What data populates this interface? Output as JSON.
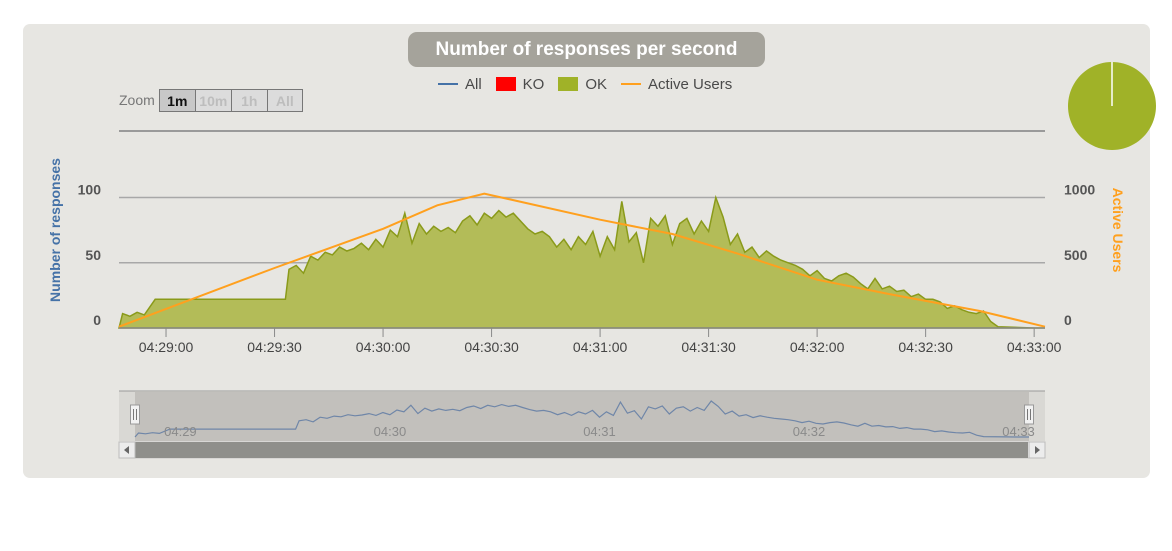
{
  "title": "Number of responses per second",
  "legend": {
    "items": [
      {
        "key": "all",
        "label": "All",
        "color": "#4572a7",
        "kind": "line"
      },
      {
        "key": "ko",
        "label": "KO",
        "color": "#ff0000",
        "kind": "box"
      },
      {
        "key": "ok",
        "label": "OK",
        "color": "#a0b228",
        "kind": "box"
      },
      {
        "key": "users",
        "label": "Active Users",
        "color": "#ffa01e",
        "kind": "line"
      }
    ]
  },
  "zoom": {
    "label": "Zoom",
    "buttons": [
      {
        "label": "1m",
        "active": true
      },
      {
        "label": "10m",
        "active": false
      },
      {
        "label": "1h",
        "active": false
      },
      {
        "label": "All",
        "active": false
      }
    ]
  },
  "chart_data": {
    "type": "area",
    "title": "Number of responses per second",
    "xlabel": "",
    "ylabel": "Number of responses",
    "y2label": "Active Users",
    "x_range": [
      "04:28:47",
      "04:33:03"
    ],
    "x_ticks": [
      "04:29:00",
      "04:29:30",
      "04:30:00",
      "04:30:30",
      "04:31:00",
      "04:31:30",
      "04:32:00",
      "04:32:30",
      "04:33:00"
    ],
    "ylim": [
      0,
      150
    ],
    "y_ticks": [
      0,
      50,
      100
    ],
    "y2lim": [
      0,
      1500
    ],
    "y2_ticks": [
      0,
      500,
      1000
    ],
    "grid": true,
    "legend_position": "top-center",
    "series": [
      {
        "name": "OK",
        "axis": "left",
        "color": "#a0b228",
        "points": [
          [
            "04:28:47",
            0
          ],
          [
            "04:28:48",
            11
          ],
          [
            "04:28:50",
            9
          ],
          [
            "04:28:52",
            12
          ],
          [
            "04:28:54",
            10
          ],
          [
            "04:28:57",
            22
          ],
          [
            "04:29:00",
            22
          ],
          [
            "04:29:10",
            22
          ],
          [
            "04:29:20",
            22
          ],
          [
            "04:29:30",
            22
          ],
          [
            "04:29:33",
            22
          ],
          [
            "04:29:34",
            45
          ],
          [
            "04:29:36",
            48
          ],
          [
            "04:29:38",
            42
          ],
          [
            "04:29:40",
            55
          ],
          [
            "04:29:42",
            52
          ],
          [
            "04:29:44",
            58
          ],
          [
            "04:29:46",
            56
          ],
          [
            "04:29:48",
            62
          ],
          [
            "04:29:50",
            59
          ],
          [
            "04:29:52",
            61
          ],
          [
            "04:29:54",
            65
          ],
          [
            "04:29:56",
            60
          ],
          [
            "04:29:58",
            68
          ],
          [
            "04:30:00",
            62
          ],
          [
            "04:30:02",
            75
          ],
          [
            "04:30:04",
            70
          ],
          [
            "04:30:06",
            88
          ],
          [
            "04:30:08",
            65
          ],
          [
            "04:30:10",
            80
          ],
          [
            "04:30:12",
            72
          ],
          [
            "04:30:14",
            78
          ],
          [
            "04:30:16",
            74
          ],
          [
            "04:30:18",
            77
          ],
          [
            "04:30:20",
            73
          ],
          [
            "04:30:22",
            82
          ],
          [
            "04:30:24",
            86
          ],
          [
            "04:30:26",
            79
          ],
          [
            "04:30:28",
            88
          ],
          [
            "04:30:30",
            84
          ],
          [
            "04:30:32",
            90
          ],
          [
            "04:30:34",
            85
          ],
          [
            "04:30:36",
            88
          ],
          [
            "04:30:38",
            82
          ],
          [
            "04:30:40",
            76
          ],
          [
            "04:30:42",
            72
          ],
          [
            "04:30:44",
            74
          ],
          [
            "04:30:46",
            70
          ],
          [
            "04:30:48",
            62
          ],
          [
            "04:30:50",
            68
          ],
          [
            "04:30:52",
            60
          ],
          [
            "04:30:54",
            70
          ],
          [
            "04:30:56",
            64
          ],
          [
            "04:30:58",
            74
          ],
          [
            "04:31:00",
            55
          ],
          [
            "04:31:02",
            70
          ],
          [
            "04:31:04",
            60
          ],
          [
            "04:31:06",
            97
          ],
          [
            "04:31:08",
            66
          ],
          [
            "04:31:10",
            73
          ],
          [
            "04:31:12",
            50
          ],
          [
            "04:31:14",
            84
          ],
          [
            "04:31:16",
            78
          ],
          [
            "04:31:18",
            86
          ],
          [
            "04:31:20",
            64
          ],
          [
            "04:31:22",
            80
          ],
          [
            "04:31:24",
            84
          ],
          [
            "04:31:26",
            72
          ],
          [
            "04:31:28",
            82
          ],
          [
            "04:31:30",
            74
          ],
          [
            "04:31:32",
            100
          ],
          [
            "04:31:34",
            85
          ],
          [
            "04:31:36",
            64
          ],
          [
            "04:31:38",
            72
          ],
          [
            "04:31:40",
            58
          ],
          [
            "04:31:42",
            62
          ],
          [
            "04:31:44",
            54
          ],
          [
            "04:31:46",
            59
          ],
          [
            "04:31:48",
            55
          ],
          [
            "04:31:50",
            52
          ],
          [
            "04:31:52",
            50
          ],
          [
            "04:31:54",
            48
          ],
          [
            "04:31:56",
            45
          ],
          [
            "04:31:58",
            40
          ],
          [
            "04:32:00",
            44
          ],
          [
            "04:32:02",
            38
          ],
          [
            "04:32:04",
            36
          ],
          [
            "04:32:06",
            40
          ],
          [
            "04:32:08",
            42
          ],
          [
            "04:32:10",
            39
          ],
          [
            "04:32:12",
            34
          ],
          [
            "04:32:14",
            30
          ],
          [
            "04:32:16",
            38
          ],
          [
            "04:32:18",
            30
          ],
          [
            "04:32:20",
            32
          ],
          [
            "04:32:22",
            28
          ],
          [
            "04:32:24",
            29
          ],
          [
            "04:32:26",
            24
          ],
          [
            "04:32:28",
            26
          ],
          [
            "04:32:30",
            22
          ],
          [
            "04:32:32",
            22
          ],
          [
            "04:32:34",
            20
          ],
          [
            "04:32:36",
            15
          ],
          [
            "04:32:38",
            17
          ],
          [
            "04:32:40",
            14
          ],
          [
            "04:32:42",
            12
          ],
          [
            "04:32:44",
            11
          ],
          [
            "04:32:46",
            13
          ],
          [
            "04:32:48",
            5
          ],
          [
            "04:32:50",
            1
          ],
          [
            "04:33:00",
            0
          ],
          [
            "04:33:03",
            0
          ]
        ]
      },
      {
        "name": "Active Users",
        "axis": "right",
        "color": "#ffa01e",
        "points": [
          [
            "04:28:47",
            10
          ],
          [
            "04:29:30",
            460
          ],
          [
            "04:30:00",
            760
          ],
          [
            "04:30:15",
            940
          ],
          [
            "04:30:28",
            1030
          ],
          [
            "04:31:00",
            830
          ],
          [
            "04:31:20",
            720
          ],
          [
            "04:31:38",
            570
          ],
          [
            "04:32:00",
            370
          ],
          [
            "04:32:20",
            260
          ],
          [
            "04:32:45",
            130
          ],
          [
            "04:33:03",
            10
          ]
        ]
      }
    ],
    "navigator": {
      "labels": [
        "04:29",
        "04:30",
        "04:31",
        "04:32",
        "04:33"
      ],
      "window": [
        "04:28:47",
        "04:33:03"
      ]
    },
    "pie": {
      "slices": [
        {
          "name": "OK",
          "value": 99.9,
          "color": "#a0b228"
        },
        {
          "name": "KO",
          "value": 0.1,
          "color": "#ff0000"
        }
      ]
    }
  }
}
